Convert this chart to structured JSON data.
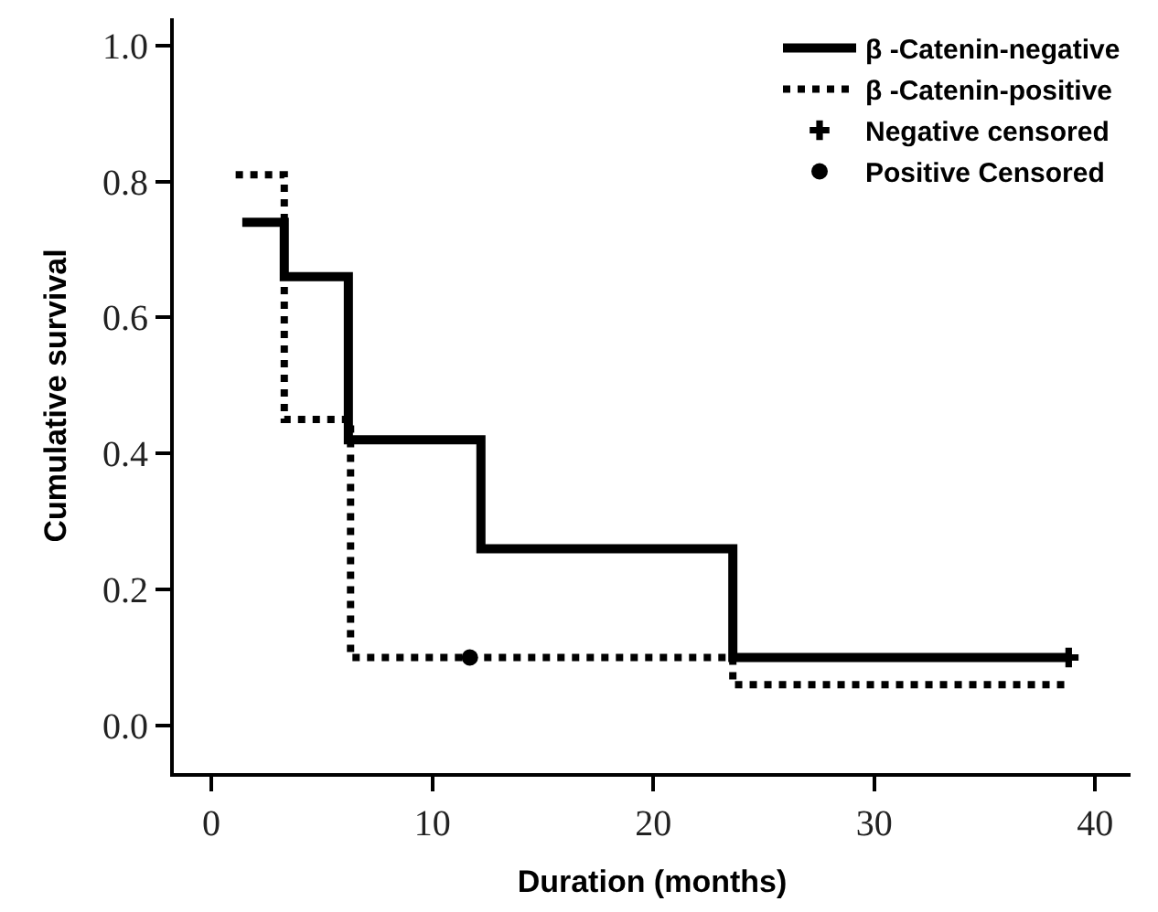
{
  "chart_data": {
    "type": "step",
    "xlabel": "Duration (months)",
    "ylabel": "Cumulative survival",
    "xlim": [
      -1.7,
      41.6
    ],
    "ylim": [
      -0.07,
      1.04
    ],
    "xticks": [
      0,
      10,
      20,
      30,
      40
    ],
    "yticks": [
      {
        "value": 0,
        "label": "0.0"
      },
      {
        "value": 0.2,
        "label": "0.2"
      },
      {
        "value": 0.4,
        "label": "0.4"
      },
      {
        "value": 0.6,
        "label": "0.6"
      },
      {
        "value": 0.8,
        "label": "0.8"
      },
      {
        "value": 1,
        "label": "1.0"
      }
    ],
    "legend": "top right",
    "series": [
      {
        "name": "β -Catenin-negative",
        "color": "#000000",
        "line_style": "solid",
        "x": [
          1.4,
          3.3,
          6.2,
          12.2,
          23.6,
          38.8
        ],
        "values": [
          0.74,
          0.66,
          0.42,
          0.26,
          0.1,
          0.1
        ]
      },
      {
        "name": "β -Catenin-positive",
        "color": "#000000",
        "line_style": "dotted",
        "x": [
          1.1,
          3.3,
          6.3,
          23.6,
          38.8
        ],
        "values": [
          0.81,
          0.45,
          0.1,
          0.06,
          0.06
        ]
      },
      {
        "name": "Negative censored",
        "type": "scatter",
        "marker": "cross",
        "color": "#000000",
        "x": [
          38.8
        ],
        "values": [
          0.1
        ]
      },
      {
        "name": "Positive Censored",
        "type": "scatter",
        "marker": "circle",
        "color": "#000000",
        "x": [
          11.7
        ],
        "values": [
          0.1
        ]
      }
    ]
  }
}
